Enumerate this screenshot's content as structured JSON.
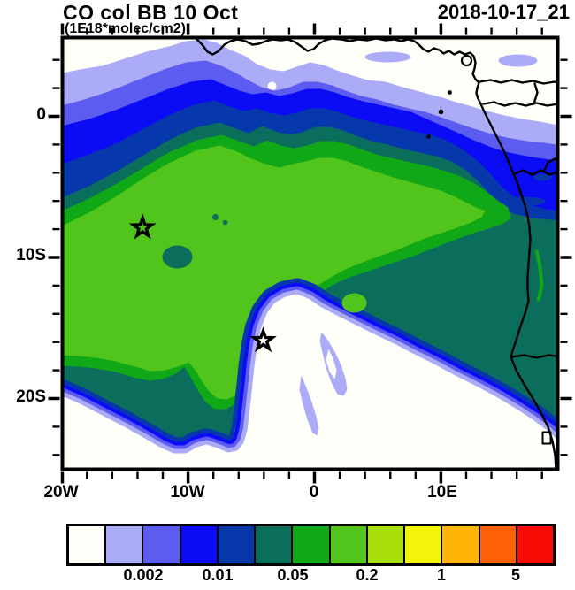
{
  "header": {
    "title": "CO col BB 10 Oct",
    "units_label": "(1E18*molec/cm2)",
    "timestamp": "2018-10-17_21"
  },
  "map": {
    "x_axis": {
      "major": [
        {
          "deg": -20,
          "label": "20W"
        },
        {
          "deg": -10,
          "label": "10W"
        },
        {
          "deg": 0,
          "label": "0"
        },
        {
          "deg": 10,
          "label": "10E"
        }
      ],
      "minor_step_deg": 2,
      "min_deg": -20,
      "max_deg": 18
    },
    "y_axis": {
      "major": [
        {
          "deg": 0,
          "label": "0"
        },
        {
          "deg": 10,
          "label": "10S"
        },
        {
          "deg": 20,
          "label": "20S"
        }
      ],
      "minor_step_deg": 2,
      "min_deg": -4,
      "max_deg": 24
    },
    "markers": [
      {
        "name": "star-marker-northwest",
        "lon_deg": -13.6,
        "lat_deg": -7.9
      },
      {
        "name": "star-marker-southeast",
        "lon_deg": -4.06,
        "lat_deg": -15.9
      }
    ]
  },
  "colorbar": {
    "colors": [
      "#FFFFFA",
      "#ABABF8",
      "#5C5CF0",
      "#0B0BF6",
      "#0638AC",
      "#0B6E5C",
      "#10A816",
      "#52C51C",
      "#AADF0E",
      "#F4F40B",
      "#FFB508",
      "#FF6008",
      "#F80B06"
    ],
    "tick_labels": [
      "0.002",
      "0.01",
      "0.05",
      "0.2",
      "1",
      "5"
    ]
  },
  "chart_data": {
    "type": "heatmap",
    "subtype": "filled-contour-map",
    "title": "CO col BB 10 Oct",
    "units": "1E18*molec/cm2",
    "timestamp": "2018-10-17_21",
    "region": {
      "lon_min": "20W",
      "lon_max": "~19E",
      "lat_min": "~25S",
      "lat_max": "~5N"
    },
    "contour_levels": [
      0.001,
      0.002,
      0.005,
      0.01,
      0.02,
      0.05,
      0.1,
      0.2,
      0.5,
      1,
      2,
      5
    ],
    "labeled_levels": [
      0.002,
      0.01,
      0.05,
      0.2,
      1,
      5
    ],
    "palette": [
      "#FFFFFA",
      "#ABABF8",
      "#5C5CF0",
      "#0B0BF6",
      "#0638AC",
      "#0B6E5C",
      "#10A816",
      "#52C51C",
      "#AADF0E",
      "#F4F40B",
      "#FFB508",
      "#FF6008",
      "#F80B06"
    ],
    "x_tick_labels": [
      "20W",
      "10W",
      "0",
      "10E"
    ],
    "y_tick_labels": [
      "0",
      "10S",
      "20S"
    ],
    "max_plotted_band": "0.1-0.2 (bright green plume core over SE Atlantic, ~17W-5W / 2S-17S)",
    "features": [
      "white low-CO band along the northern edge (Gulf of Guinea, ~2N-5N)",
      "NW-SE banded gradient 0.001-0.05 across 5N to 3S",
      "broad 0.02-0.05 teal region covering the central and eastern map including the Congo/Angola coast",
      "0.05-0.2 biomass-burning plume curling cyclonically with a tail hooking south near 8W, 17S-22S",
      "low-CO clearing (<0.001) in the SE Atlantic around 3W-12E, 14S-24S with faint 0.001-0.002 streaks",
      "two star markers in the plume and in the clearing (near Ascension and St Helena)",
      "African coastline with country borders, Bioko and Sao Tome/Principe islands"
    ]
  }
}
